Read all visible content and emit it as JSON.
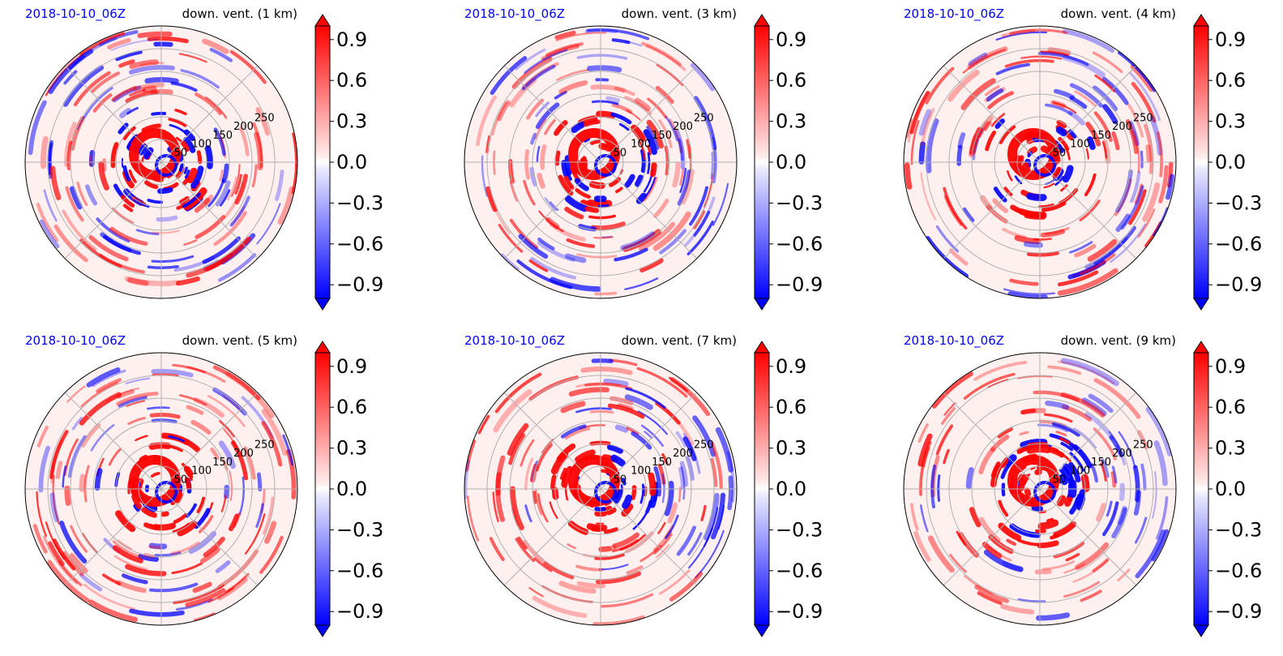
{
  "chart_data": {
    "type": "heatmap",
    "projection": "polar",
    "colormap": "bwr",
    "colors": {
      "negative": "#0000ff",
      "zero": "#ffffff",
      "positive": "#ff0000"
    },
    "color_range": [
      -1.0,
      1.0
    ],
    "colorbar_ticks": [
      "0.9",
      "0.6",
      "0.3",
      "0.0",
      "−0.3",
      "−0.6",
      "−0.9"
    ],
    "radial_ticks": [
      "50",
      "100",
      "150",
      "200",
      "250"
    ],
    "radial_max": 300,
    "grid": true,
    "panels": [
      {
        "date": "2018-10-10_06Z",
        "title": "down. vent. (1 km)"
      },
      {
        "date": "2018-10-10_06Z",
        "title": "down. vent. (3 km)"
      },
      {
        "date": "2018-10-10_06Z",
        "title": "down. vent. (4 km)"
      },
      {
        "date": "2018-10-10_06Z",
        "title": "down. vent. (5 km)"
      },
      {
        "date": "2018-10-10_06Z",
        "title": "down. vent. (7 km)"
      },
      {
        "date": "2018-10-10_06Z",
        "title": "down. vent. (9 km)"
      }
    ]
  }
}
